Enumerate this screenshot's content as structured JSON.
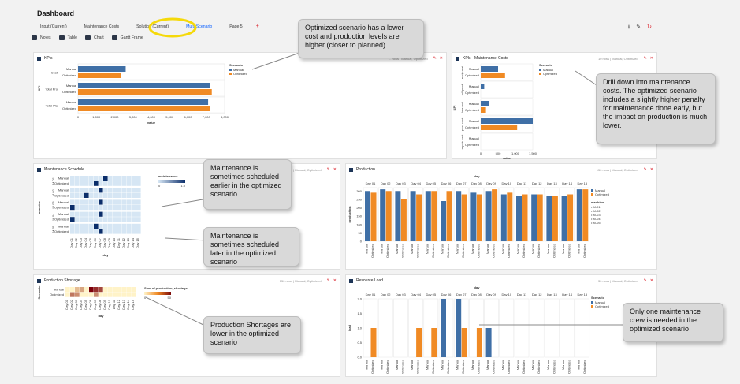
{
  "page": {
    "title": "Dashboard"
  },
  "tabs": [
    {
      "label": "Input (Current)",
      "active": false
    },
    {
      "label": "Maintenance Costs",
      "active": false
    },
    {
      "label": "Solution (Current)",
      "active": false
    },
    {
      "label": "Multi-Scenario",
      "active": true
    },
    {
      "label": "Page 5",
      "active": false
    }
  ],
  "tab_add": "+",
  "toolbar": {
    "notes": "Notes",
    "table": "Table",
    "chart": "Chart",
    "gantt": "Gantt Frame"
  },
  "icons": {
    "download": "download-icon",
    "edit": "pencil-icon",
    "refresh": "refresh-icon"
  },
  "colors": {
    "manual": "#3f6fa6",
    "optimized": "#f08a24",
    "highlight": "#f5d90a",
    "accent": "#0f62fe",
    "danger": "#da1e28"
  },
  "scenarios": [
    "Manual",
    "Optimized"
  ],
  "panels": {
    "kpis": {
      "title": "KPIs",
      "meta": "... rows | Manual, Optimized",
      "ylabel": "KPI",
      "xlabel": "value",
      "categories": [
        "Cost",
        "Total Pro",
        "Total Pla"
      ],
      "ticks": [
        "0",
        "1,000",
        "2,000",
        "3,000",
        "4,000",
        "5,000",
        "6,000",
        "7,000",
        "8,000"
      ],
      "legend_title": "Scenario"
    },
    "kpis_maint": {
      "title": "KPIs - Maintenance Costs",
      "meta": "10 rows | Manual, Optimized",
      "ylabel": "KPI",
      "xlabel": "value",
      "categories": [
        "early mai",
        "full prod",
        "late mai",
        "prod cost",
        "repair cost"
      ],
      "ticks": [
        "0",
        "500",
        "1,000",
        "1,500"
      ],
      "legend_title": "Scenario"
    },
    "maintenance": {
      "title": "Maintenance Schedule",
      "meta": "... rows | Manual, Optimized",
      "ylabel": "machine",
      "xlabel": "day",
      "machines": [
        "M-01",
        "M-02",
        "M-03",
        "M-04",
        "M-05"
      ],
      "days": [
        "Day 01",
        "Day 02",
        "Day 03",
        "Day 04",
        "Day 05",
        "Day 06",
        "Day 07",
        "Day 08",
        "Day 09",
        "Day 10",
        "Day 11",
        "Day 12",
        "Day 13",
        "Day 14",
        "Day 15"
      ],
      "legend_title": "maintenance",
      "legend_min": "0",
      "legend_max": "1.0"
    },
    "production": {
      "title": "Production",
      "meta": "150 rows | Manual, Optimized",
      "ylabel": "production",
      "xlabel": "day",
      "yticks": [
        "0",
        "50",
        "100",
        "150",
        "200",
        "250",
        "300"
      ],
      "days": [
        "Day 01",
        "Day 02",
        "Day 03",
        "Day 04",
        "Day 05",
        "Day 06",
        "Day 07",
        "Day 08",
        "Day 09",
        "Day 10",
        "Day 11",
        "Day 12",
        "Day 13",
        "Day 14",
        "Day 15"
      ],
      "legend_machine_title": "machine",
      "machines": [
        "M-01",
        "M-02",
        "M-03",
        "M-04",
        "M-05"
      ]
    },
    "shortage": {
      "title": "Production Shortage",
      "meta": "150 rows | Manual, Optimized",
      "ylabel": "Scenario",
      "xlabel": "day",
      "legend_title": "Sum of production_shortage",
      "legend_min": "0",
      "legend_max": "50"
    },
    "resource": {
      "title": "Resource Load",
      "meta": "30 rows | Manual, Optimized",
      "ylabel": "load",
      "xlabel": "day",
      "yticks": [
        "0.0",
        "0.5",
        "1.0",
        "1.5",
        "2.0"
      ],
      "days": [
        "Day 01",
        "Day 02",
        "Day 03",
        "Day 04",
        "Day 05",
        "Day 06",
        "Day 07",
        "Day 08",
        "Day 09",
        "Day 10",
        "Day 11",
        "Day 12",
        "Day 13",
        "Day 14",
        "Day 15"
      ],
      "legend_title": "Scenario"
    }
  },
  "callouts": {
    "kpis": "Optimized scenario has a lower cost and production levels are higher (closer to planned)",
    "maint_costs": "Drill down into maintenance costs.  The optimized scenario includes a slightly higher penalty for maintenance done early, but the impact on production is much lower.",
    "earlier": "Maintenance is sometimes scheduled earlier in the optimized scenario",
    "later": "Maintenance is sometimes scheduled later in the optimized scenario",
    "shortage": "Production Shortages are lower in the optimized scenario",
    "resource": "Only one maintenance crew is needed in the optimized scenario"
  },
  "chart_data": [
    {
      "type": "bar",
      "orientation": "horizontal",
      "title": "KPIs",
      "categories": [
        "Cost",
        "Total Pro",
        "Total Pla"
      ],
      "series": [
        {
          "name": "Manual",
          "values": [
            2600,
            7200,
            7100
          ]
        },
        {
          "name": "Optimized",
          "values": [
            2350,
            7300,
            7200
          ]
        }
      ],
      "xlabel": "value",
      "ylabel": "KPI",
      "xlim": [
        0,
        8000
      ]
    },
    {
      "type": "bar",
      "orientation": "horizontal",
      "title": "KPIs - Maintenance Costs",
      "categories": [
        "early mai",
        "full prod",
        "late mai",
        "prod cost",
        "repair cost"
      ],
      "series": [
        {
          "name": "Manual",
          "values": [
            500,
            100,
            250,
            1500,
            0
          ]
        },
        {
          "name": "Optimized",
          "values": [
            700,
            0,
            150,
            1050,
            0
          ]
        }
      ],
      "xlabel": "value",
      "ylabel": "KPI",
      "xlim": [
        0,
        1500
      ]
    },
    {
      "type": "heatmap",
      "title": "Maintenance Schedule",
      "rows": [
        "M-01 Manual",
        "M-01 Optimized",
        "M-02 Manual",
        "M-02 Optimized",
        "M-03 Manual",
        "M-03 Optimized",
        "M-04 Manual",
        "M-04 Optimized",
        "M-05 Manual",
        "M-05 Optimized"
      ],
      "columns": [
        "Day 01",
        "Day 02",
        "Day 03",
        "Day 04",
        "Day 05",
        "Day 06",
        "Day 07",
        "Day 08",
        "Day 09",
        "Day 10",
        "Day 11",
        "Day 12",
        "Day 13",
        "Day 14",
        "Day 15"
      ],
      "maintenance_day_index": [
        7,
        5,
        6,
        3,
        6,
        0,
        6,
        0,
        5,
        6
      ],
      "xlabel": "day",
      "ylabel": "machine",
      "range": [
        0,
        1
      ]
    },
    {
      "type": "bar",
      "title": "Production",
      "categories": [
        "Day 01",
        "Day 02",
        "Day 03",
        "Day 04",
        "Day 05",
        "Day 06",
        "Day 07",
        "Day 08",
        "Day 09",
        "Day 10",
        "Day 11",
        "Day 12",
        "Day 13",
        "Day 14",
        "Day 15"
      ],
      "series": [
        {
          "name": "Manual",
          "values": [
            300,
            310,
            300,
            300,
            300,
            240,
            300,
            290,
            300,
            280,
            270,
            280,
            270,
            270,
            310
          ]
        },
        {
          "name": "Optimized",
          "values": [
            290,
            300,
            250,
            280,
            300,
            300,
            280,
            280,
            310,
            290,
            280,
            280,
            270,
            280,
            310
          ]
        }
      ],
      "xlabel": "day",
      "ylabel": "production",
      "ylim": [
        0,
        320
      ]
    },
    {
      "type": "heatmap",
      "title": "Production Shortage",
      "rows": [
        "Manual",
        "Optimized"
      ],
      "columns": [
        "Day 01",
        "Day 02",
        "Day 03",
        "Day 04",
        "Day 05",
        "Day 06",
        "Day 07",
        "Day 08",
        "Day 09",
        "Day 10",
        "Day 11",
        "Day 12",
        "Day 13",
        "Day 14",
        "Day 15"
      ],
      "values": [
        [
          0,
          0,
          10,
          15,
          0,
          50,
          40,
          35,
          0,
          0,
          0,
          0,
          0,
          0,
          0
        ],
        [
          0,
          25,
          20,
          0,
          0,
          0,
          20,
          0,
          0,
          0,
          0,
          0,
          0,
          0,
          0
        ]
      ],
      "xlabel": "day",
      "ylabel": "Scenario",
      "range": [
        0,
        50
      ]
    },
    {
      "type": "bar",
      "title": "Resource Load",
      "categories": [
        "Day 01",
        "Day 02",
        "Day 03",
        "Day 04",
        "Day 05",
        "Day 06",
        "Day 07",
        "Day 08",
        "Day 09",
        "Day 10",
        "Day 11",
        "Day 12",
        "Day 13",
        "Day 14",
        "Day 15"
      ],
      "series": [
        {
          "name": "Manual",
          "values": [
            0,
            0,
            0,
            0,
            0,
            2,
            2,
            0,
            1,
            0,
            0,
            0,
            0,
            0,
            0
          ]
        },
        {
          "name": "Optimized",
          "values": [
            1,
            0,
            0,
            1,
            1,
            0,
            1,
            1,
            0,
            0,
            0,
            0,
            0,
            0,
            0
          ]
        }
      ],
      "xlabel": "day",
      "ylabel": "load",
      "ylim": [
        0,
        2
      ]
    }
  ]
}
